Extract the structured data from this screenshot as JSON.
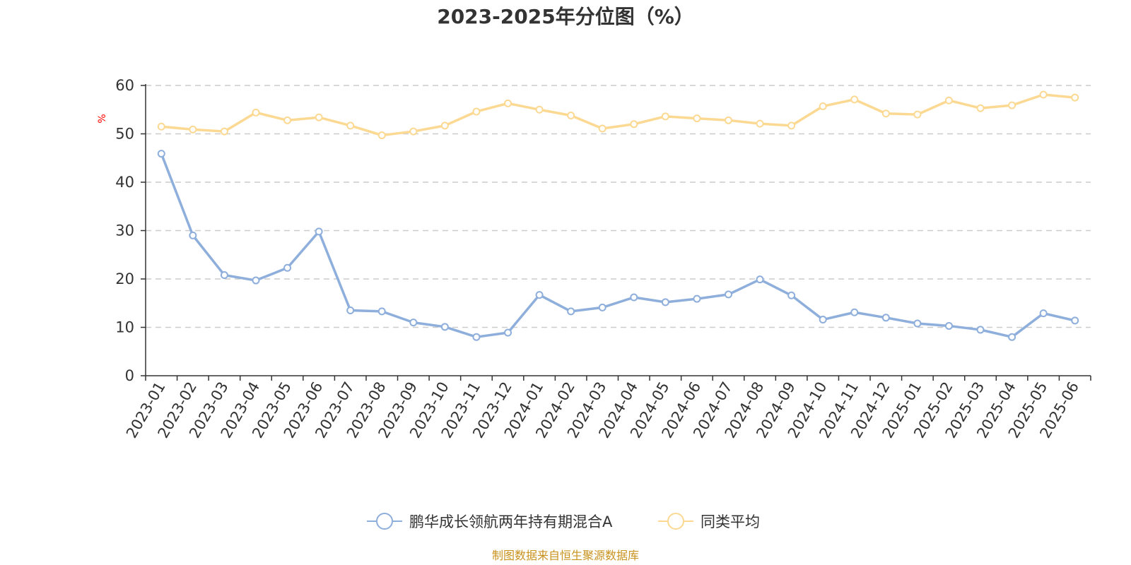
{
  "chart_data": {
    "type": "line",
    "title": "2023-2025年分位图（%）",
    "ylabel": "%",
    "xlabel": "",
    "ylim": [
      0,
      60
    ],
    "yticks": [
      0,
      10,
      20,
      30,
      40,
      50,
      60
    ],
    "grid": true,
    "legend_position": "bottom",
    "categories": [
      "2023-01",
      "2023-02",
      "2023-03",
      "2023-04",
      "2023-05",
      "2023-06",
      "2023-07",
      "2023-08",
      "2023-09",
      "2023-10",
      "2023-11",
      "2023-12",
      "2024-01",
      "2024-02",
      "2024-03",
      "2024-04",
      "2024-05",
      "2024-06",
      "2024-07",
      "2024-08",
      "2024-09",
      "2024-10",
      "2024-11",
      "2024-12",
      "2025-01",
      "2025-02",
      "2025-03",
      "2025-04",
      "2025-05",
      "2025-06"
    ],
    "series": [
      {
        "name": "鹏华成长领航两年持有期混合A",
        "color": "#8eaedb",
        "values": [
          45.9,
          29.0,
          20.8,
          19.7,
          22.3,
          29.8,
          13.5,
          13.3,
          11.0,
          10.1,
          8.0,
          8.9,
          16.7,
          13.3,
          14.1,
          16.2,
          15.2,
          15.9,
          16.8,
          19.9,
          16.6,
          11.6,
          13.1,
          12.0,
          10.8,
          10.3,
          9.5,
          8.0,
          12.9,
          11.4
        ]
      },
      {
        "name": "同类平均",
        "color": "#fcd993",
        "values": [
          51.5,
          50.9,
          50.5,
          54.4,
          52.8,
          53.4,
          51.7,
          49.7,
          50.5,
          51.7,
          54.6,
          56.3,
          55.0,
          53.8,
          51.1,
          52.0,
          53.6,
          53.2,
          52.8,
          52.1,
          51.7,
          55.7,
          57.1,
          54.2,
          54.0,
          56.9,
          55.3,
          55.9,
          58.1,
          57.5
        ]
      }
    ]
  },
  "source_text": "制图数据来自恒生聚源数据库",
  "colors": {
    "axis": "#333333",
    "grid": "#cccccc",
    "unit": "#ff0000",
    "source": "#c8921e",
    "title": "#333333"
  }
}
